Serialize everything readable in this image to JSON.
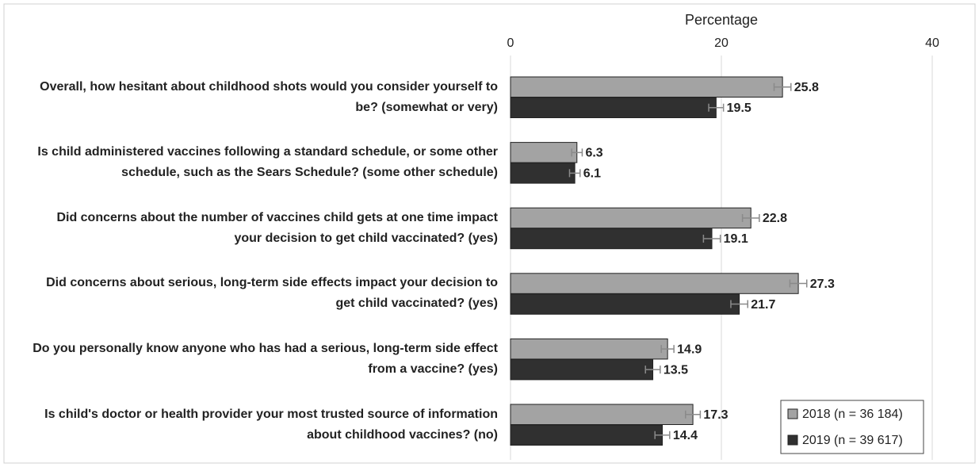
{
  "chart_data": {
    "type": "bar",
    "orientation": "horizontal",
    "x_label": "Percentage",
    "categories": [
      "Overall, how hesitant about childhood shots would you consider yourself to be? (somewhat or very)",
      "Is child administered vaccines following a standard schedule, or some other schedule, such as the Sears Schedule? (some other schedule)",
      "Did concerns about the number of vaccines child gets at one time impact your decision to get child vaccinated? (yes)",
      "Did concerns about serious, long-term side effects impact your decision to get child vaccinated? (yes)",
      "Do you personally know anyone who has had a serious, long-term side effect from a vaccine? (yes)",
      "Is child's doctor or health provider your most trusted source of information about childhood vaccines? (no)"
    ],
    "series": [
      {
        "name": "2018 (n = 36 184)",
        "color": "#a3a3a3",
        "values": [
          25.8,
          6.3,
          22.8,
          27.3,
          14.9,
          17.3
        ],
        "errors": [
          0.8,
          0.5,
          0.8,
          0.8,
          0.6,
          0.7
        ]
      },
      {
        "name": "2019 (n = 39 617)",
        "color": "#303030",
        "values": [
          19.5,
          6.1,
          19.1,
          21.7,
          13.5,
          14.4
        ],
        "errors": [
          0.7,
          0.5,
          0.8,
          0.8,
          0.7,
          0.7
        ]
      }
    ],
    "xlim": [
      0,
      40
    ],
    "xticks": [
      0,
      20,
      40
    ],
    "grid": true,
    "legend": "lower right"
  }
}
